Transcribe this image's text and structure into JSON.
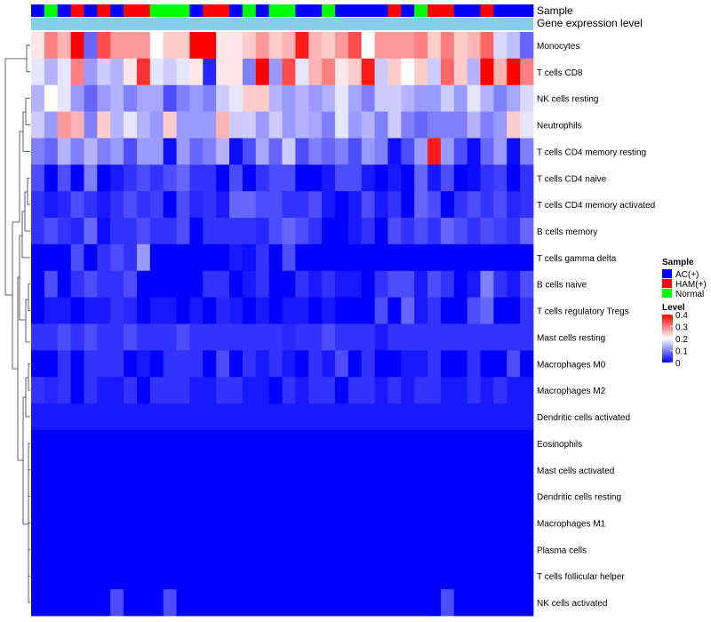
{
  "chart_data": {
    "type": "heatmap",
    "annotation_labels": {
      "sample": "Sample",
      "gene": "Gene expression level"
    },
    "sample_groups": [
      "AC(+)",
      "Normal",
      "AC(+)",
      "HAM(+)",
      "AC(+)",
      "HAM(+)",
      "AC(+)",
      "HAM(+)",
      "HAM(+)",
      "Normal",
      "Normal",
      "Normal",
      "AC(+)",
      "HAM(+)",
      "HAM(+)",
      "AC(+)",
      "Normal",
      "AC(+)",
      "Normal",
      "Normal",
      "AC(+)",
      "AC(+)",
      "Normal",
      "AC(+)",
      "AC(+)",
      "AC(+)",
      "AC(+)",
      "HAM(+)",
      "AC(+)",
      "Normal",
      "HAM(+)",
      "HAM(+)",
      "AC(+)",
      "AC(+)",
      "HAM(+)",
      "AC(+)",
      "AC(+)",
      "AC(+)"
    ],
    "rows": [
      "Monocytes",
      "T cells CD8",
      "NK cells resting",
      "Neutrophils",
      "T cells CD4 memory resting",
      "T cells CD4 naive",
      "T cells CD4 memory activated",
      "B cells memory",
      "T cells gamma delta",
      "B cells naive",
      "T cells regulatory  Tregs",
      "Mast cells resting",
      "Macrophages M0",
      "Macrophages M2",
      "Dendritic cells activated",
      "Eosinophils",
      "Mast cells activated",
      "Dendritic cells resting",
      "Macrophages M1",
      "Plasma cells",
      "T cells follicular helper",
      "NK cells activated"
    ],
    "values": [
      [
        0.22,
        0.3,
        0.26,
        0.4,
        0.08,
        0.34,
        0.28,
        0.28,
        0.28,
        0.2,
        0.24,
        0.24,
        0.4,
        0.4,
        0.22,
        0.22,
        0.24,
        0.28,
        0.24,
        0.26,
        0.38,
        0.26,
        0.24,
        0.28,
        0.34,
        0.2,
        0.28,
        0.28,
        0.28,
        0.3,
        0.24,
        0.3,
        0.24,
        0.26,
        0.32,
        0.17,
        0.15,
        0.08
      ],
      [
        0.18,
        0.14,
        0.18,
        0.3,
        0.12,
        0.16,
        0.14,
        0.22,
        0.36,
        0.18,
        0.16,
        0.18,
        0.22,
        0.03,
        0.22,
        0.22,
        0.1,
        0.4,
        0.12,
        0.34,
        0.18,
        0.26,
        0.3,
        0.22,
        0.24,
        0.38,
        0.16,
        0.24,
        0.2,
        0.24,
        0.16,
        0.32,
        0.24,
        0.14,
        0.4,
        0.26,
        0.4,
        0.3
      ],
      [
        0.14,
        0.2,
        0.18,
        0.12,
        0.08,
        0.12,
        0.14,
        0.1,
        0.13,
        0.13,
        0.06,
        0.1,
        0.12,
        0.1,
        0.16,
        0.18,
        0.24,
        0.24,
        0.14,
        0.12,
        0.14,
        0.12,
        0.14,
        0.18,
        0.13,
        0.1,
        0.16,
        0.16,
        0.14,
        0.12,
        0.12,
        0.16,
        0.12,
        0.18,
        0.14,
        0.1,
        0.13,
        0.17
      ],
      [
        0.16,
        0.12,
        0.28,
        0.26,
        0.1,
        0.24,
        0.14,
        0.18,
        0.14,
        0.12,
        0.24,
        0.12,
        0.12,
        0.12,
        0.26,
        0.16,
        0.16,
        0.12,
        0.16,
        0.12,
        0.14,
        0.13,
        0.1,
        0.18,
        0.12,
        0.14,
        0.1,
        0.16,
        0.1,
        0.08,
        0.1,
        0.1,
        0.1,
        0.14,
        0.1,
        0.12,
        0.24,
        0.18
      ],
      [
        0.1,
        0.08,
        0.14,
        0.1,
        0.14,
        0.1,
        0.12,
        0.06,
        0.12,
        0.12,
        0.01,
        0.12,
        0.08,
        0.1,
        0.14,
        0.01,
        0.06,
        0.13,
        0.08,
        0.16,
        0.06,
        0.1,
        0.08,
        0.1,
        0.06,
        0.12,
        0.1,
        0.01,
        0.06,
        0.12,
        0.38,
        0.12,
        0.06,
        0.01,
        0.08,
        0.12,
        0.01,
        0.1
      ],
      [
        0.06,
        0.0,
        0.06,
        0.0,
        0.1,
        0.0,
        0.02,
        0.04,
        0.06,
        0.04,
        0.06,
        0.08,
        0.04,
        0.04,
        0.0,
        0.06,
        0.0,
        0.04,
        0.06,
        0.06,
        0.0,
        0.0,
        0.02,
        0.06,
        0.06,
        0.02,
        0.0,
        0.02,
        0.0,
        0.08,
        0.02,
        0.06,
        0.0,
        0.01,
        0.04,
        0.05,
        0.0,
        0.04
      ],
      [
        0.04,
        0.02,
        0.03,
        0.06,
        0.04,
        0.02,
        0.04,
        0.06,
        0.04,
        0.05,
        0.0,
        0.06,
        0.03,
        0.04,
        0.02,
        0.08,
        0.08,
        0.06,
        0.06,
        0.04,
        0.04,
        0.06,
        0.02,
        0.0,
        0.02,
        0.06,
        0.02,
        0.04,
        0.0,
        0.08,
        0.06,
        0.0,
        0.04,
        0.06,
        0.04,
        0.06,
        0.03,
        0.04
      ],
      [
        0.04,
        0.06,
        0.04,
        0.03,
        0.08,
        0.01,
        0.04,
        0.04,
        0.06,
        0.04,
        0.04,
        0.06,
        0.0,
        0.04,
        0.04,
        0.04,
        0.04,
        0.03,
        0.06,
        0.08,
        0.06,
        0.04,
        0.0,
        0.0,
        0.02,
        0.04,
        0.0,
        0.06,
        0.04,
        0.06,
        0.04,
        0.08,
        0.06,
        0.04,
        0.06,
        0.05,
        0.04,
        0.08
      ],
      [
        0.0,
        0.0,
        0.0,
        0.06,
        0.0,
        0.04,
        0.06,
        0.04,
        0.12,
        0.0,
        0.0,
        0.0,
        0.0,
        0.0,
        0.0,
        0.02,
        0.01,
        0.04,
        0.0,
        0.06,
        0.0,
        0.0,
        0.0,
        0.0,
        0.0,
        0.0,
        0.0,
        0.0,
        0.0,
        0.0,
        0.0,
        0.0,
        0.0,
        0.0,
        0.0,
        0.0,
        0.0,
        0.0
      ],
      [
        0.0,
        0.06,
        0.0,
        0.04,
        0.06,
        0.04,
        0.04,
        0.06,
        0.0,
        0.0,
        0.0,
        0.0,
        0.0,
        0.04,
        0.04,
        0.0,
        0.02,
        0.04,
        0.0,
        0.0,
        0.04,
        0.02,
        0.04,
        0.02,
        0.02,
        0.0,
        0.04,
        0.06,
        0.06,
        0.02,
        0.06,
        0.04,
        0.0,
        0.02,
        0.1,
        0.04,
        0.02,
        0.06
      ],
      [
        0.0,
        0.02,
        0.02,
        0.0,
        0.02,
        0.02,
        0.04,
        0.03,
        0.0,
        0.02,
        0.02,
        0.0,
        0.02,
        0.0,
        0.03,
        0.02,
        0.0,
        0.02,
        0.0,
        0.02,
        0.02,
        0.0,
        0.02,
        0.0,
        0.0,
        0.0,
        0.06,
        0.0,
        0.08,
        0.02,
        0.04,
        0.0,
        0.0,
        0.06,
        0.08,
        0.0,
        0.0,
        0.04
      ],
      [
        0.04,
        0.04,
        0.06,
        0.04,
        0.06,
        0.04,
        0.04,
        0.06,
        0.04,
        0.04,
        0.04,
        0.06,
        0.04,
        0.04,
        0.04,
        0.04,
        0.04,
        0.04,
        0.04,
        0.03,
        0.04,
        0.04,
        0.06,
        0.04,
        0.04,
        0.04,
        0.02,
        0.04,
        0.04,
        0.04,
        0.04,
        0.04,
        0.04,
        0.04,
        0.04,
        0.04,
        0.04,
        0.04
      ],
      [
        0.0,
        0.0,
        0.04,
        0.0,
        0.04,
        0.04,
        0.04,
        0.0,
        0.02,
        0.0,
        0.04,
        0.04,
        0.04,
        0.0,
        0.06,
        0.0,
        0.04,
        0.02,
        0.04,
        0.02,
        0.0,
        0.04,
        0.02,
        0.06,
        0.0,
        0.04,
        0.0,
        0.0,
        0.02,
        0.02,
        0.04,
        0.0,
        0.0,
        0.04,
        0.0,
        0.0,
        0.06,
        0.0
      ],
      [
        0.04,
        0.03,
        0.04,
        0.0,
        0.04,
        0.02,
        0.02,
        0.04,
        0.0,
        0.04,
        0.04,
        0.04,
        0.02,
        0.02,
        0.04,
        0.04,
        0.02,
        0.02,
        0.0,
        0.04,
        0.02,
        0.04,
        0.04,
        0.0,
        0.04,
        0.04,
        0.02,
        0.04,
        0.02,
        0.04,
        0.04,
        0.02,
        0.02,
        0.04,
        0.02,
        0.04,
        0.02,
        0.02
      ],
      [
        0.02,
        0.02,
        0.02,
        0.02,
        0.02,
        0.02,
        0.02,
        0.02,
        0.02,
        0.02,
        0.02,
        0.02,
        0.02,
        0.02,
        0.02,
        0.02,
        0.02,
        0.02,
        0.02,
        0.02,
        0.02,
        0.02,
        0.02,
        0.02,
        0.02,
        0.02,
        0.02,
        0.02,
        0.02,
        0.02,
        0.02,
        0.02,
        0.02,
        0.02,
        0.02,
        0.02,
        0.02,
        0.02
      ],
      [
        0,
        0,
        0,
        0,
        0,
        0,
        0,
        0,
        0,
        0,
        0,
        0,
        0,
        0,
        0,
        0,
        0,
        0,
        0,
        0,
        0,
        0,
        0,
        0,
        0,
        0,
        0,
        0,
        0,
        0,
        0,
        0,
        0,
        0,
        0,
        0,
        0,
        0
      ],
      [
        0,
        0,
        0,
        0,
        0,
        0,
        0,
        0,
        0,
        0,
        0,
        0,
        0,
        0,
        0,
        0,
        0,
        0,
        0,
        0,
        0,
        0,
        0,
        0,
        0,
        0,
        0,
        0,
        0,
        0,
        0,
        0,
        0,
        0,
        0,
        0,
        0,
        0
      ],
      [
        0,
        0,
        0,
        0,
        0,
        0,
        0,
        0,
        0,
        0,
        0,
        0,
        0,
        0,
        0,
        0,
        0,
        0,
        0,
        0,
        0,
        0,
        0,
        0,
        0,
        0,
        0,
        0,
        0,
        0,
        0,
        0,
        0,
        0,
        0,
        0,
        0,
        0
      ],
      [
        0,
        0,
        0,
        0,
        0,
        0,
        0,
        0,
        0,
        0,
        0,
        0,
        0,
        0,
        0,
        0,
        0,
        0,
        0,
        0,
        0,
        0,
        0,
        0,
        0,
        0,
        0,
        0,
        0,
        0,
        0,
        0,
        0,
        0,
        0,
        0,
        0,
        0
      ],
      [
        0,
        0,
        0,
        0,
        0,
        0,
        0,
        0,
        0,
        0,
        0,
        0,
        0,
        0,
        0,
        0,
        0,
        0,
        0,
        0,
        0,
        0,
        0,
        0,
        0,
        0,
        0,
        0,
        0,
        0,
        0,
        0,
        0,
        0,
        0,
        0,
        0,
        0
      ],
      [
        0,
        0,
        0,
        0,
        0,
        0,
        0,
        0,
        0,
        0,
        0,
        0,
        0,
        0,
        0,
        0,
        0,
        0,
        0,
        0,
        0,
        0,
        0,
        0,
        0,
        0,
        0,
        0,
        0,
        0,
        0,
        0,
        0,
        0,
        0,
        0,
        0,
        0
      ],
      [
        0,
        0,
        0,
        0,
        0,
        0,
        0.06,
        0,
        0,
        0,
        0.06,
        0,
        0,
        0,
        0,
        0,
        0,
        0,
        0,
        0,
        0,
        0,
        0,
        0,
        0,
        0,
        0,
        0,
        0,
        0,
        0,
        0.06,
        0,
        0,
        0,
        0,
        0,
        0
      ]
    ],
    "color_scale": {
      "min": 0,
      "max": 0.4,
      "low": "#0000ff",
      "mid": "#ffffff",
      "high": "#ff0000",
      "midpoint": 0.2
    },
    "legend": {
      "sample_title": "Sample",
      "sample_entries": [
        {
          "label": "AC(+)",
          "color": "#0000ff"
        },
        {
          "label": "HAM(+)",
          "color": "#ff0000"
        },
        {
          "label": "Normal",
          "color": "#00ff00"
        }
      ],
      "level_title": "Level",
      "level_ticks": [
        "0.4",
        "0.3",
        "0.2",
        "0.1",
        "0"
      ],
      "level_tick_values": [
        0.4,
        0.3,
        0.2,
        0.1,
        0
      ],
      "placement": "right"
    },
    "gene_bar_color": "#87ceeb"
  }
}
